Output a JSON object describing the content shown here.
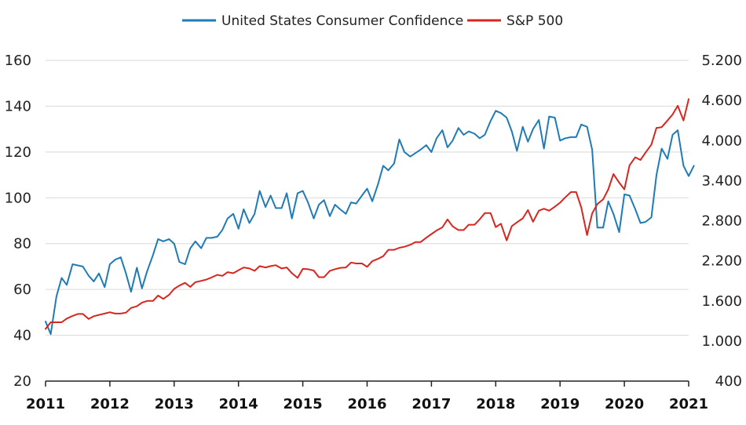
{
  "chart_data": {
    "type": "line",
    "legend": {
      "placement": "top"
    },
    "grid": {
      "horizontal": true,
      "vertical": false
    },
    "x_ticks": [
      "2011",
      "2012",
      "2013",
      "2014",
      "2015",
      "2016",
      "2017",
      "2018",
      "2019",
      "2020",
      "2021"
    ],
    "y_left": {
      "ylim": [
        20,
        160
      ],
      "ticks": [
        "20",
        "40",
        "60",
        "80",
        "100",
        "120",
        "140",
        "160"
      ]
    },
    "y_right": {
      "ylim": [
        400,
        5200
      ],
      "ticks": [
        "400",
        "1.000",
        "1.600",
        "2.200",
        "2.800",
        "3.400",
        "4.000",
        "4.600",
        "5.200"
      ]
    },
    "series": [
      {
        "name": "United States Consumer Confidence",
        "axis": "left",
        "color": "#1f7bb6",
        "points": [
          [
            2011.0,
            46
          ],
          [
            2011.08,
            40.5
          ],
          [
            2011.17,
            57
          ],
          [
            2011.25,
            65
          ],
          [
            2011.33,
            62
          ],
          [
            2011.42,
            71
          ],
          [
            2011.58,
            70
          ],
          [
            2011.67,
            66
          ],
          [
            2011.75,
            63.5
          ],
          [
            2011.83,
            67
          ],
          [
            2011.92,
            61
          ],
          [
            2012.0,
            71
          ],
          [
            2012.08,
            73
          ],
          [
            2012.17,
            74
          ],
          [
            2012.25,
            67
          ],
          [
            2012.33,
            59
          ],
          [
            2012.42,
            69.5
          ],
          [
            2012.5,
            60.5
          ],
          [
            2012.58,
            68
          ],
          [
            2012.67,
            75
          ],
          [
            2012.75,
            82
          ],
          [
            2012.83,
            81
          ],
          [
            2012.92,
            82
          ],
          [
            2013.0,
            80
          ],
          [
            2013.08,
            72
          ],
          [
            2013.17,
            71
          ],
          [
            2013.25,
            78
          ],
          [
            2013.33,
            81
          ],
          [
            2013.42,
            78
          ],
          [
            2013.5,
            82.5
          ],
          [
            2013.58,
            82.5
          ],
          [
            2013.67,
            83
          ],
          [
            2013.75,
            86
          ],
          [
            2013.83,
            91
          ],
          [
            2013.92,
            93
          ],
          [
            2014.0,
            86.5
          ],
          [
            2014.08,
            95
          ],
          [
            2014.17,
            89
          ],
          [
            2014.25,
            93
          ],
          [
            2014.33,
            103
          ],
          [
            2014.42,
            96
          ],
          [
            2014.5,
            101
          ],
          [
            2014.58,
            95.5
          ],
          [
            2014.67,
            95.5
          ],
          [
            2014.75,
            102
          ],
          [
            2014.83,
            91
          ],
          [
            2014.92,
            102
          ],
          [
            2015.0,
            103
          ],
          [
            2015.08,
            98
          ],
          [
            2015.17,
            91
          ],
          [
            2015.25,
            97
          ],
          [
            2015.33,
            99
          ],
          [
            2015.42,
            92
          ],
          [
            2015.5,
            97
          ],
          [
            2015.58,
            95
          ],
          [
            2015.67,
            93
          ],
          [
            2015.75,
            98
          ],
          [
            2015.83,
            97.5
          ],
          [
            2015.92,
            101
          ],
          [
            2016.0,
            104
          ],
          [
            2016.08,
            98.5
          ],
          [
            2016.17,
            106
          ],
          [
            2016.25,
            114
          ],
          [
            2016.33,
            112
          ],
          [
            2016.42,
            115
          ],
          [
            2016.5,
            125.5
          ],
          [
            2016.58,
            120
          ],
          [
            2016.67,
            118
          ],
          [
            2016.75,
            119.5
          ],
          [
            2016.83,
            121
          ],
          [
            2016.92,
            123
          ],
          [
            2017.0,
            120
          ],
          [
            2017.08,
            126
          ],
          [
            2017.17,
            129.5
          ],
          [
            2017.25,
            122
          ],
          [
            2017.33,
            125
          ],
          [
            2017.42,
            130.5
          ],
          [
            2017.5,
            127.5
          ],
          [
            2017.58,
            129
          ],
          [
            2017.67,
            128
          ],
          [
            2017.75,
            126
          ],
          [
            2017.83,
            127.5
          ],
          [
            2017.92,
            133.5
          ],
          [
            2018.0,
            138
          ],
          [
            2018.08,
            137
          ],
          [
            2018.17,
            135
          ],
          [
            2018.25,
            129
          ],
          [
            2018.33,
            120.5
          ],
          [
            2018.42,
            131
          ],
          [
            2018.5,
            124.5
          ],
          [
            2018.58,
            130
          ],
          [
            2018.67,
            134
          ],
          [
            2018.75,
            121.5
          ],
          [
            2018.83,
            135.5
          ],
          [
            2018.92,
            135
          ],
          [
            2019.0,
            125
          ],
          [
            2019.08,
            126
          ],
          [
            2019.17,
            126.5
          ],
          [
            2019.25,
            126.5
          ],
          [
            2019.33,
            132
          ],
          [
            2019.42,
            131
          ],
          [
            2019.5,
            121
          ],
          [
            2019.58,
            87
          ],
          [
            2019.67,
            87
          ],
          [
            2019.75,
            98.5
          ],
          [
            2019.83,
            93
          ],
          [
            2019.92,
            85
          ],
          [
            2020.0,
            101.5
          ],
          [
            2020.08,
            101
          ],
          [
            2020.17,
            95
          ],
          [
            2020.25,
            89
          ],
          [
            2020.33,
            89.5
          ],
          [
            2020.42,
            91.5
          ],
          [
            2020.5,
            110
          ],
          [
            2020.58,
            121.5
          ],
          [
            2020.67,
            117
          ],
          [
            2020.75,
            127.5
          ],
          [
            2020.83,
            129.5
          ],
          [
            2020.92,
            114
          ],
          [
            2021.0,
            109.5
          ],
          [
            2021.08,
            114
          ]
        ]
      },
      {
        "name": "S&P 500",
        "axis": "right",
        "color": "#d7261e",
        "points": [
          [
            2011.0,
            1180
          ],
          [
            2011.08,
            1280
          ],
          [
            2011.17,
            1280
          ],
          [
            2011.25,
            1280
          ],
          [
            2011.33,
            1335
          ],
          [
            2011.42,
            1375
          ],
          [
            2011.5,
            1405
          ],
          [
            2011.58,
            1405
          ],
          [
            2011.67,
            1330
          ],
          [
            2011.75,
            1370
          ],
          [
            2011.83,
            1390
          ],
          [
            2011.92,
            1410
          ],
          [
            2012.0,
            1430
          ],
          [
            2012.08,
            1410
          ],
          [
            2012.17,
            1410
          ],
          [
            2012.25,
            1425
          ],
          [
            2012.33,
            1495
          ],
          [
            2012.42,
            1520
          ],
          [
            2012.5,
            1575
          ],
          [
            2012.58,
            1600
          ],
          [
            2012.67,
            1600
          ],
          [
            2012.75,
            1680
          ],
          [
            2012.83,
            1630
          ],
          [
            2012.92,
            1690
          ],
          [
            2013.0,
            1780
          ],
          [
            2013.08,
            1830
          ],
          [
            2013.17,
            1870
          ],
          [
            2013.25,
            1810
          ],
          [
            2013.33,
            1880
          ],
          [
            2013.42,
            1900
          ],
          [
            2013.5,
            1920
          ],
          [
            2013.58,
            1950
          ],
          [
            2013.67,
            1990
          ],
          [
            2013.75,
            1975
          ],
          [
            2013.83,
            2030
          ],
          [
            2013.92,
            2015
          ],
          [
            2014.0,
            2060
          ],
          [
            2014.08,
            2100
          ],
          [
            2014.17,
            2085
          ],
          [
            2014.25,
            2050
          ],
          [
            2014.33,
            2120
          ],
          [
            2014.42,
            2100
          ],
          [
            2014.5,
            2120
          ],
          [
            2014.58,
            2135
          ],
          [
            2014.67,
            2085
          ],
          [
            2014.75,
            2100
          ],
          [
            2014.83,
            2015
          ],
          [
            2014.92,
            1945
          ],
          [
            2015.0,
            2080
          ],
          [
            2015.08,
            2075
          ],
          [
            2015.17,
            2055
          ],
          [
            2015.25,
            1955
          ],
          [
            2015.33,
            1955
          ],
          [
            2015.42,
            2050
          ],
          [
            2015.5,
            2075
          ],
          [
            2015.58,
            2095
          ],
          [
            2015.67,
            2100
          ],
          [
            2015.75,
            2175
          ],
          [
            2015.83,
            2160
          ],
          [
            2015.92,
            2160
          ],
          [
            2016.0,
            2110
          ],
          [
            2016.08,
            2195
          ],
          [
            2016.17,
            2230
          ],
          [
            2016.25,
            2270
          ],
          [
            2016.33,
            2365
          ],
          [
            2016.42,
            2365
          ],
          [
            2016.5,
            2395
          ],
          [
            2016.58,
            2410
          ],
          [
            2016.67,
            2440
          ],
          [
            2016.75,
            2480
          ],
          [
            2016.83,
            2480
          ],
          [
            2016.92,
            2545
          ],
          [
            2017.0,
            2600
          ],
          [
            2017.08,
            2655
          ],
          [
            2017.17,
            2700
          ],
          [
            2017.25,
            2820
          ],
          [
            2017.33,
            2715
          ],
          [
            2017.42,
            2660
          ],
          [
            2017.5,
            2660
          ],
          [
            2017.58,
            2740
          ],
          [
            2017.67,
            2740
          ],
          [
            2017.75,
            2820
          ],
          [
            2017.83,
            2915
          ],
          [
            2017.92,
            2915
          ],
          [
            2018.0,
            2705
          ],
          [
            2018.08,
            2755
          ],
          [
            2018.17,
            2505
          ],
          [
            2018.25,
            2720
          ],
          [
            2018.33,
            2775
          ],
          [
            2018.42,
            2835
          ],
          [
            2018.5,
            2960
          ],
          [
            2018.58,
            2785
          ],
          [
            2018.67,
            2950
          ],
          [
            2018.75,
            2980
          ],
          [
            2018.83,
            2950
          ],
          [
            2018.92,
            3010
          ],
          [
            2019.0,
            3070
          ],
          [
            2019.08,
            3150
          ],
          [
            2019.17,
            3230
          ],
          [
            2019.25,
            3230
          ],
          [
            2019.33,
            3000
          ],
          [
            2019.42,
            2585
          ],
          [
            2019.5,
            2910
          ],
          [
            2019.58,
            3050
          ],
          [
            2019.67,
            3120
          ],
          [
            2019.75,
            3270
          ],
          [
            2019.83,
            3500
          ],
          [
            2019.92,
            3370
          ],
          [
            2020.0,
            3270
          ],
          [
            2020.08,
            3630
          ],
          [
            2020.17,
            3750
          ],
          [
            2020.25,
            3710
          ],
          [
            2020.33,
            3820
          ],
          [
            2020.42,
            3940
          ],
          [
            2020.5,
            4190
          ],
          [
            2020.58,
            4200
          ],
          [
            2020.67,
            4300
          ],
          [
            2020.75,
            4390
          ],
          [
            2020.83,
            4520
          ],
          [
            2020.92,
            4300
          ],
          [
            2021.0,
            4620
          ]
        ]
      }
    ]
  }
}
